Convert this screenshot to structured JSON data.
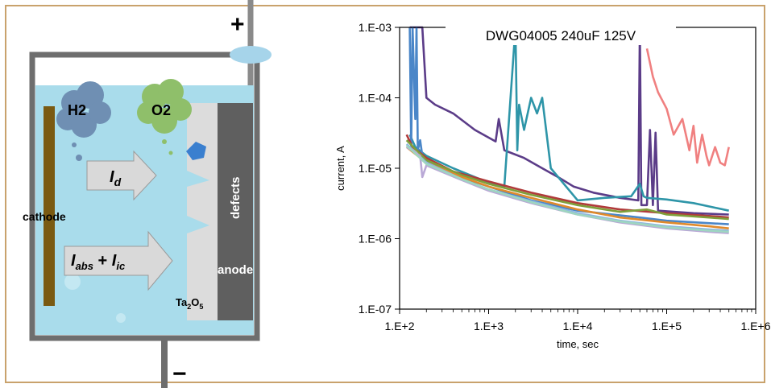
{
  "diagram": {
    "plus_label": "+",
    "minus_label": "−",
    "h2_label": "H2",
    "o2_label": "O2",
    "cathode_label": "cathode",
    "anode_label": "anode",
    "defects_label": "defects",
    "oxide_main": "Ta",
    "oxide_sub1": "2",
    "oxide_mid": "O",
    "oxide_sub2": "5",
    "id_main": "I",
    "id_sub": "d",
    "iabs_main": "I",
    "iabs_sub": "abs",
    "iabs_plus": " + ",
    "iic_main": "I",
    "iic_sub": "ic",
    "colors": {
      "electrolyte": "#a9dceb",
      "container": "#6e6e6e",
      "cathode": "#7a5a12",
      "anode": "#5f5f5f",
      "oxide": "#dcdcdc",
      "h2_cloud": "#6f8fb3",
      "o2_cloud": "#8fbf6a",
      "arrow": "#d9d9d9",
      "particle": "#3a7fcf"
    }
  },
  "chart_data": {
    "type": "line",
    "title": "DWG04005 240uF 125V",
    "xlabel": "time, sec",
    "ylabel": "current, A",
    "x_scale": "log",
    "y_scale": "log",
    "xlim": [
      100,
      1000000
    ],
    "ylim": [
      1e-07,
      0.001
    ],
    "x_ticks": [
      "1.E+2",
      "1.E+3",
      "1.E+4",
      "1.E+5",
      "1.E+6"
    ],
    "y_ticks": [
      "1.E-07",
      "1.E-06",
      "1.E-05",
      "1.E-04",
      "1.E-03"
    ],
    "grid": false,
    "series": [
      {
        "color": "#5b3c88",
        "x": [
          130,
          150,
          180,
          200,
          250,
          400,
          700,
          1200,
          1300,
          1500,
          2500,
          4000,
          6000,
          9000,
          15000,
          30000,
          48000,
          50000,
          52000,
          60000,
          65000,
          70000,
          75000,
          80000,
          200000,
          500000
        ],
        "y": [
          0.001,
          0.001,
          0.001,
          0.0001,
          8e-05,
          6e-05,
          3.5e-05,
          2.4e-05,
          5e-05,
          1.8e-05,
          1.4e-05,
          1e-05,
          7.5e-06,
          5.5e-06,
          4.5e-06,
          3.8e-06,
          3.5e-06,
          0.001,
          3e-06,
          3e-06,
          3.5e-05,
          3e-06,
          3.2e-05,
          2.5e-06,
          2.3e-06,
          2.2e-06
        ]
      },
      {
        "color": "#2e95a8",
        "x": [
          130,
          150,
          200,
          400,
          800,
          1500,
          2000,
          2100,
          2200,
          2500,
          3000,
          3500,
          4000,
          5000,
          10000,
          20000,
          40000,
          50000,
          55000,
          60000,
          100000,
          200000,
          500000
        ],
        "y": [
          3e-05,
          2e-05,
          1.5e-05,
          1e-05,
          7e-06,
          5.5e-06,
          0.001,
          1.8e-05,
          8e-05,
          3.5e-05,
          0.0001,
          6e-05,
          0.0001,
          1e-05,
          3.5e-06,
          3.8e-06,
          4e-06,
          6e-06,
          4e-06,
          3.8e-06,
          3.6e-06,
          3.2e-06,
          2.5e-06
        ]
      },
      {
        "color": "#f08080",
        "x": [
          60000,
          70000,
          80000,
          100000,
          120000,
          150000,
          180000,
          200000,
          220000,
          250000,
          280000,
          300000,
          350000,
          400000,
          450000,
          500000
        ],
        "y": [
          0.0005,
          0.0002,
          0.00012,
          7e-05,
          3e-05,
          5e-05,
          1.8e-05,
          4e-05,
          1.2e-05,
          3e-05,
          1.5e-05,
          1.1e-05,
          2e-05,
          1.2e-05,
          1.1e-05,
          2e-05
        ]
      },
      {
        "color": "#4a86c8",
        "x": [
          130,
          135,
          140,
          150,
          155,
          160,
          170,
          180,
          200,
          400,
          1000,
          3000,
          10000,
          50000,
          100000,
          500000
        ],
        "y": [
          0.001,
          2e-05,
          0.001,
          5e-05,
          0.001,
          1.8e-05,
          2.5e-05,
          1.5e-05,
          1.3e-05,
          8e-06,
          5.5e-06,
          3.5e-06,
          2.5e-06,
          2e-06,
          1.8e-06,
          1.6e-06
        ]
      },
      {
        "color": "#b03a3a",
        "x": [
          120,
          140,
          200,
          400,
          1000,
          3000,
          10000,
          30000,
          100000,
          300000,
          500000
        ],
        "y": [
          3e-05,
          2e-05,
          1.4e-05,
          9e-06,
          6.5e-06,
          4.5e-06,
          3.2e-06,
          2.6e-06,
          2.3e-06,
          2.1e-06,
          2e-06
        ]
      },
      {
        "color": "#7f9f3a",
        "x": [
          120,
          200,
          500,
          1000,
          3000,
          10000,
          30000,
          60000,
          100000,
          300000,
          500000
        ],
        "y": [
          2.5e-05,
          1.3e-05,
          8e-06,
          6e-06,
          4.2e-06,
          3e-06,
          2.4e-06,
          2.6e-06,
          2.2e-06,
          2e-06,
          1.9e-06
        ]
      },
      {
        "color": "#e08a2c",
        "x": [
          120,
          200,
          500,
          1000,
          3000,
          10000,
          30000,
          100000,
          300000,
          500000
        ],
        "y": [
          2e-05,
          1.2e-05,
          7.5e-06,
          5.5e-06,
          3.8e-06,
          2.6e-06,
          2e-06,
          1.7e-06,
          1.5e-06,
          1.4e-06
        ]
      },
      {
        "color": "#8fb7df",
        "x": [
          120,
          200,
          500,
          1000,
          3000,
          10000,
          30000,
          100000,
          300000,
          500000
        ],
        "y": [
          2.2e-05,
          1.2e-05,
          7e-06,
          5e-06,
          3.4e-06,
          2.3e-06,
          1.8e-06,
          1.5e-06,
          1.35e-06,
          1.3e-06
        ]
      },
      {
        "color": "#b9a8d6",
        "x": [
          120,
          170,
          180,
          200,
          500,
          1000,
          3000,
          10000,
          30000,
          100000,
          300000,
          500000
        ],
        "y": [
          2e-05,
          1.5e-05,
          7.5e-06,
          1.1e-05,
          6.8e-06,
          4.8e-06,
          3.2e-06,
          2.2e-06,
          1.7e-06,
          1.4e-06,
          1.25e-06,
          1.2e-06
        ]
      },
      {
        "color": "#9ed6c0",
        "x": [
          120,
          200,
          500,
          1000,
          3000,
          10000,
          30000,
          100000,
          300000,
          500000
        ],
        "y": [
          2.1e-05,
          1.15e-05,
          7e-06,
          5e-06,
          3.3e-06,
          2.2e-06,
          1.75e-06,
          1.45e-06,
          1.3e-06,
          1.25e-06
        ]
      }
    ]
  }
}
